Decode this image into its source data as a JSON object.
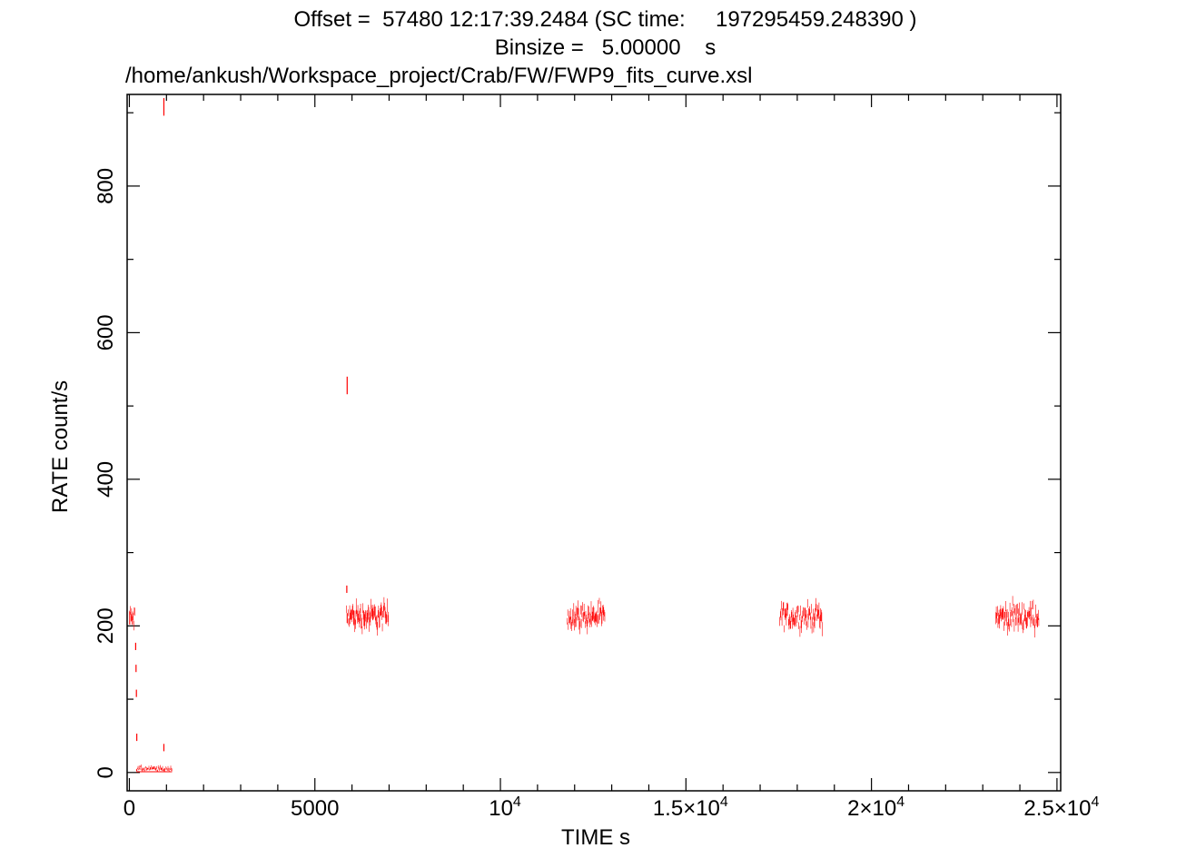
{
  "header": {
    "offset_line": "Offset =  57480 12:17:39.2484 (SC time:     197295459.248390 )",
    "binsize_line": "Binsize =   5.00000    s",
    "file_path": "/home/ankush/Workspace_project/Crab/FW/FWP9_fits_curve.xsl"
  },
  "colors": {
    "data": "#ff0000",
    "axes": "#000000",
    "background": "#ffffff"
  },
  "chart_data": {
    "type": "scatter",
    "title": "Offset =  57480 12:17:39.2484 (SC time:     197295459.248390 )",
    "subtitle": "Binsize =   5.00000    s",
    "xlabel": "TIME  s",
    "ylabel": "RATE  count/s",
    "xlim": [
      -60,
      25100
    ],
    "ylim": [
      -25,
      925
    ],
    "grid": false,
    "legend": "none",
    "x_ticks": [
      {
        "value": 0,
        "base": "0",
        "exp": ""
      },
      {
        "value": 5000,
        "base": "5000",
        "exp": ""
      },
      {
        "value": 10000,
        "base": "10",
        "exp": "4"
      },
      {
        "value": 15000,
        "base": "1.5×10",
        "exp": "4"
      },
      {
        "value": 20000,
        "base": "2×10",
        "exp": "4"
      },
      {
        "value": 25000,
        "base": "2.5×10",
        "exp": "4"
      }
    ],
    "y_ticks": [
      {
        "value": 0,
        "label": "0"
      },
      {
        "value": 200,
        "label": "200"
      },
      {
        "value": 400,
        "label": "400"
      },
      {
        "value": 600,
        "label": "600"
      },
      {
        "value": 800,
        "label": "800"
      }
    ],
    "series": [
      {
        "segments": [
          {
            "x_start": 0,
            "x_end": 150,
            "mean": 210,
            "spread": 22
          },
          {
            "x_start": 5850,
            "x_end": 6990,
            "mean": 213,
            "spread": 25
          },
          {
            "x_start": 11800,
            "x_end": 12820,
            "mean": 213,
            "spread": 23
          },
          {
            "x_start": 17530,
            "x_end": 18690,
            "mean": 213,
            "spread": 23
          },
          {
            "x_start": 23350,
            "x_end": 24520,
            "mean": 213,
            "spread": 24
          }
        ],
        "points": [
          {
            "x": 170,
            "y": 172
          },
          {
            "x": 180,
            "y": 142
          },
          {
            "x": 190,
            "y": 108
          },
          {
            "x": 200,
            "y": 48
          },
          {
            "x": 930,
            "y": 908
          },
          {
            "x": 5870,
            "y": 528
          },
          {
            "x": 5860,
            "y": 250
          },
          {
            "x": 930,
            "y": 34
          }
        ],
        "decay_floor": {
          "x_start": 190,
          "x_end": 1150,
          "mean": 5,
          "spread": 5
        }
      }
    ]
  }
}
